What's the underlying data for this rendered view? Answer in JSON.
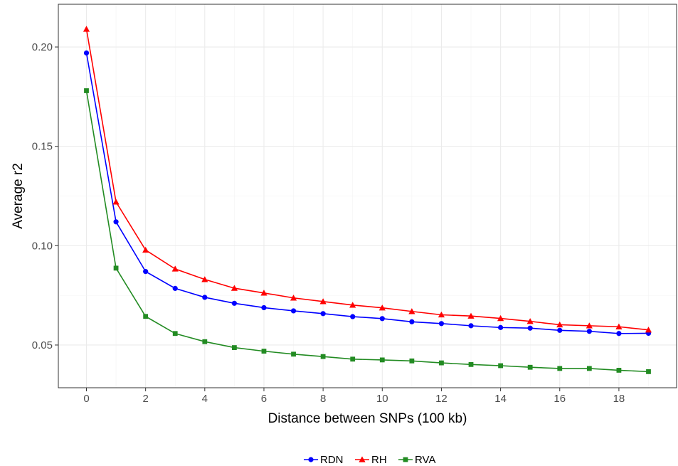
{
  "chart_data": {
    "type": "line",
    "title": "",
    "xlabel": "Distance between SNPs (100 kb)",
    "ylabel": "Average r2",
    "xlim": [
      -0.95,
      19.95
    ],
    "ylim": [
      0.0285,
      0.2215
    ],
    "x_ticks": [
      0,
      2,
      4,
      6,
      8,
      10,
      12,
      14,
      16,
      18
    ],
    "x_tick_labels": [
      "0",
      "2",
      "4",
      "6",
      "8",
      "10",
      "12",
      "14",
      "16",
      "18"
    ],
    "y_ticks": [
      0.05,
      0.1,
      0.15,
      0.2
    ],
    "y_tick_labels": [
      "0.05",
      "0.10",
      "0.15",
      "0.20"
    ],
    "grid": true,
    "legend_position": "bottom",
    "x": [
      0,
      1,
      2,
      3,
      4,
      5,
      6,
      7,
      8,
      9,
      10,
      11,
      12,
      13,
      14,
      15,
      16,
      17,
      18,
      19
    ],
    "series": [
      {
        "name": "RDN",
        "color": "#0000ff",
        "marker": "circle",
        "values": [
          0.197,
          0.112,
          0.087,
          0.0785,
          0.074,
          0.071,
          0.0688,
          0.0672,
          0.0658,
          0.0643,
          0.0633,
          0.0617,
          0.0608,
          0.0597,
          0.0588,
          0.0585,
          0.0574,
          0.0569,
          0.0558,
          0.0559
        ]
      },
      {
        "name": "RH",
        "color": "#ff0000",
        "marker": "triangle",
        "values": [
          0.209,
          0.122,
          0.0978,
          0.0883,
          0.083,
          0.0786,
          0.0762,
          0.0737,
          0.0719,
          0.0701,
          0.0687,
          0.0669,
          0.0652,
          0.0646,
          0.0634,
          0.0619,
          0.0602,
          0.0597,
          0.0592,
          0.0576
        ]
      },
      {
        "name": "RVA",
        "color": "#228b22",
        "marker": "square",
        "values": [
          0.178,
          0.0887,
          0.0644,
          0.0558,
          0.0517,
          0.0487,
          0.0469,
          0.0454,
          0.0442,
          0.0429,
          0.0425,
          0.042,
          0.041,
          0.0402,
          0.0396,
          0.0388,
          0.0382,
          0.0382,
          0.0373,
          0.0366
        ]
      }
    ]
  }
}
